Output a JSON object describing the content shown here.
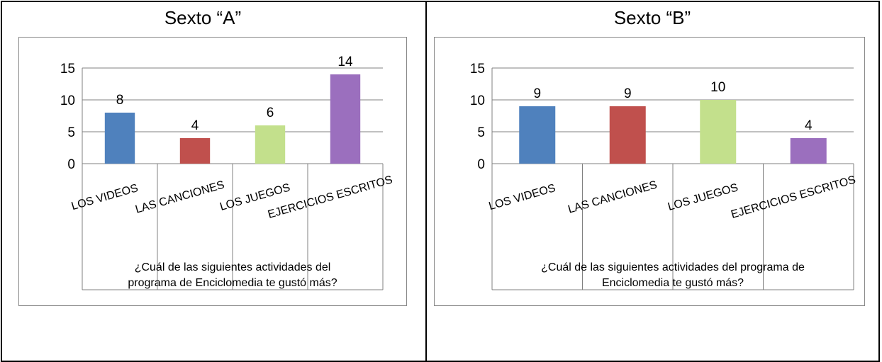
{
  "tables": [
    {
      "title": "Sexto “A”"
    },
    {
      "title": "Sexto “B”"
    }
  ],
  "chart_data": [
    {
      "type": "bar",
      "title": "",
      "categories": [
        "LOS VIDEOS",
        "LAS CANCIONES",
        "LOS JUEGOS",
        "EJERCICIOS ESCRITOS"
      ],
      "values": [
        8,
        4,
        6,
        14
      ],
      "colors": [
        "#4F81BD",
        "#C0504D",
        "#C3E08C",
        "#9B6FBE"
      ],
      "xlabel": "¿Cuál de las siguientes actividades del programa de Enciclomedia te gustó más?",
      "xlabel_lines": [
        "¿Cuál de las siguientes actividades del",
        "programa de Enciclomedia te gustó más?"
      ],
      "ylabel": "",
      "ylim": [
        0,
        15
      ],
      "yticks": [
        0,
        5,
        10,
        15
      ],
      "grid": true,
      "legend": "none"
    },
    {
      "type": "bar",
      "title": "",
      "categories": [
        "LOS VIDEOS",
        "LAS CANCIONES",
        "LOS JUEGOS",
        "EJERCICIOS ESCRITOS"
      ],
      "values": [
        9,
        9,
        10,
        4
      ],
      "colors": [
        "#4F81BD",
        "#C0504D",
        "#C3E08C",
        "#9B6FBE"
      ],
      "xlabel": "¿Cuál de las siguientes actividades del programa de Enciclomedia te gustó más?",
      "xlabel_lines": [
        "¿Cuál de las siguientes actividades del programa de",
        "Enciclomedia te gustó más?"
      ],
      "ylabel": "",
      "ylim": [
        0,
        15
      ],
      "yticks": [
        0,
        5,
        10,
        15
      ],
      "grid": true,
      "legend": "none"
    }
  ]
}
